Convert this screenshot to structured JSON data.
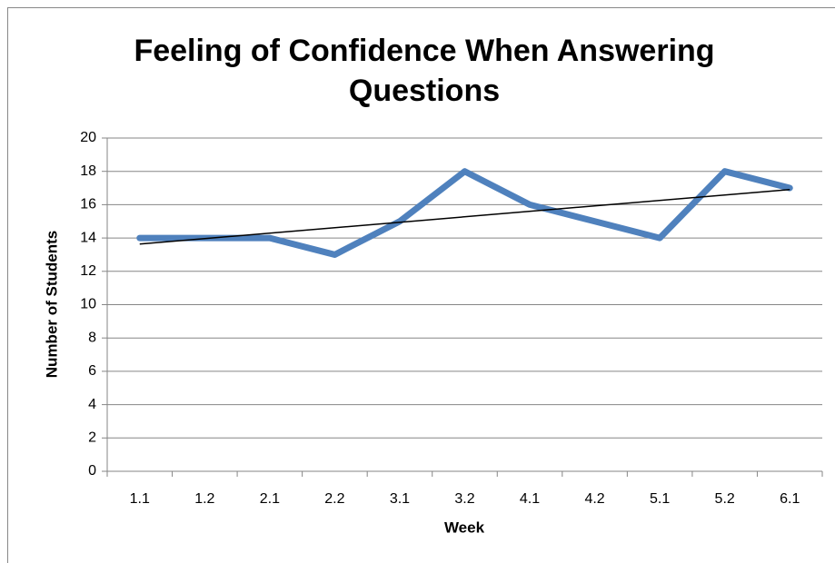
{
  "chart_data": {
    "type": "line",
    "title": "Feeling of Confidence When Answering Questions",
    "x_label": "Week",
    "y_label": "Number of Students",
    "categories": [
      "1.1",
      "1.2",
      "2.1",
      "2.2",
      "3.1",
      "3.2",
      "4.1",
      "4.2",
      "5.1",
      "5.2",
      "6.1"
    ],
    "series": [
      {
        "color": "#4f81bd",
        "values": [
          14,
          14,
          14,
          13,
          15,
          18,
          16,
          15,
          14,
          18,
          17
        ]
      }
    ],
    "trendline": "linear",
    "trendline_color": "#000000",
    "ylim": [
      0,
      20
    ],
    "yticks": [
      0,
      2,
      4,
      6,
      8,
      10,
      12,
      14,
      16,
      18,
      20
    ],
    "grid": true
  }
}
